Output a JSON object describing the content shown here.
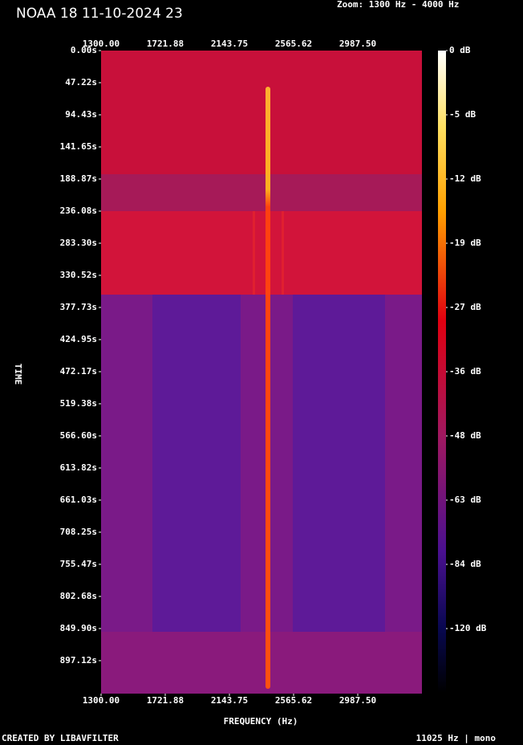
{
  "chart_data": {
    "type": "spectrogram",
    "title": "NOAA 18 11-10-2024 23",
    "subtitle": "Zoom: 1300 Hz - 4000 Hz",
    "xlabel": "FREQUENCY (Hz)",
    "ylabel": "TIME",
    "xlim": [
      1300,
      3409.375
    ],
    "xticks": [
      {
        "value": 1300,
        "label": "1300.00"
      },
      {
        "value": 1721.88,
        "label": "1721.88"
      },
      {
        "value": 2143.75,
        "label": "2143.75"
      },
      {
        "value": 2565.62,
        "label": "2565.62"
      },
      {
        "value": 2987.5,
        "label": "2987.50"
      }
    ],
    "ylim": [
      0,
      945.6
    ],
    "yticks": [
      {
        "value": 0,
        "label": "0.00s"
      },
      {
        "value": 47.22,
        "label": "47.22s"
      },
      {
        "value": 94.43,
        "label": "94.43s"
      },
      {
        "value": 141.65,
        "label": "141.65s"
      },
      {
        "value": 188.87,
        "label": "188.87s"
      },
      {
        "value": 236.08,
        "label": "236.08s"
      },
      {
        "value": 283.3,
        "label": "283.30s"
      },
      {
        "value": 330.52,
        "label": "330.52s"
      },
      {
        "value": 377.73,
        "label": "377.73s"
      },
      {
        "value": 424.95,
        "label": "424.95s"
      },
      {
        "value": 472.17,
        "label": "472.17s"
      },
      {
        "value": 519.38,
        "label": "519.38s"
      },
      {
        "value": 566.6,
        "label": "566.60s"
      },
      {
        "value": 613.82,
        "label": "613.82s"
      },
      {
        "value": 661.03,
        "label": "661.03s"
      },
      {
        "value": 708.25,
        "label": "708.25s"
      },
      {
        "value": 755.47,
        "label": "755.47s"
      },
      {
        "value": 802.68,
        "label": "802.68s"
      },
      {
        "value": 849.9,
        "label": "849.90s"
      },
      {
        "value": 897.12,
        "label": "897.12s"
      }
    ],
    "colorbar_ticks": [
      {
        "value": 0,
        "label": "0 dB"
      },
      {
        "value": -5,
        "label": "-5 dB"
      },
      {
        "value": -12,
        "label": "-12 dB"
      },
      {
        "value": -19,
        "label": "-19 dB"
      },
      {
        "value": -27,
        "label": "-27 dB"
      },
      {
        "value": -36,
        "label": "-36 dB"
      },
      {
        "value": -48,
        "label": "-48 dB"
      },
      {
        "value": -63,
        "label": "-63 dB"
      },
      {
        "value": -84,
        "label": "-84 dB"
      },
      {
        "value": -120,
        "label": "-120 dB"
      }
    ],
    "footer_left": "CREATED BY LIBAVFILTER",
    "footer_right": "11025 Hz | mono"
  }
}
